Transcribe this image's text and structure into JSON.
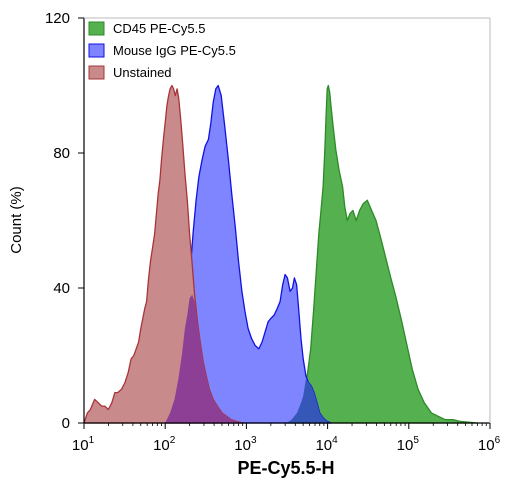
{
  "chart_data": {
    "type": "area",
    "title": "",
    "xlabel": "PE-Cy5.5-H",
    "ylabel": "Count (%)",
    "xscale": "log",
    "xlim": [
      10,
      1000000
    ],
    "ylim": [
      0,
      120
    ],
    "x_ticks": [
      {
        "value": 10,
        "base": "10",
        "exp": "1"
      },
      {
        "value": 100,
        "base": "10",
        "exp": "2"
      },
      {
        "value": 1000,
        "base": "10",
        "exp": "3"
      },
      {
        "value": 10000,
        "base": "10",
        "exp": "4"
      },
      {
        "value": 100000,
        "base": "10",
        "exp": "5"
      },
      {
        "value": 1000000,
        "base": "10",
        "exp": "6"
      }
    ],
    "y_ticks": [
      {
        "value": 0,
        "label": "0"
      },
      {
        "value": 40,
        "label": "40"
      },
      {
        "value": 80,
        "label": "80"
      },
      {
        "value": 120,
        "label": "120"
      }
    ],
    "grid": false,
    "legend_position": "top-left",
    "series": [
      {
        "name": "CD45 PE-Cy5.5",
        "fill": "#55b04f",
        "stroke": "#2e8a28",
        "points": [
          [
            3100,
            0
          ],
          [
            3600,
            1
          ],
          [
            4200,
            3
          ],
          [
            5000,
            8
          ],
          [
            5600,
            14
          ],
          [
            6200,
            22
          ],
          [
            6700,
            33
          ],
          [
            7300,
            46
          ],
          [
            7800,
            56
          ],
          [
            8300,
            63
          ],
          [
            8800,
            70
          ],
          [
            9200,
            80
          ],
          [
            9600,
            92
          ],
          [
            9900,
            99
          ],
          [
            10200,
            100
          ],
          [
            10600,
            98
          ],
          [
            11100,
            93
          ],
          [
            11700,
            88
          ],
          [
            12600,
            81
          ],
          [
            13800,
            75
          ],
          [
            15300,
            70
          ],
          [
            16300,
            64
          ],
          [
            17500,
            60
          ],
          [
            18800,
            62
          ],
          [
            20500,
            63
          ],
          [
            22500,
            60
          ],
          [
            24800,
            63
          ],
          [
            27500,
            65
          ],
          [
            30800,
            66
          ],
          [
            34800,
            63
          ],
          [
            39500,
            60
          ],
          [
            45000,
            55
          ],
          [
            52000,
            49
          ],
          [
            60000,
            43
          ],
          [
            70000,
            37
          ],
          [
            82000,
            30
          ],
          [
            95000,
            23
          ],
          [
            110000,
            16
          ],
          [
            130000,
            10
          ],
          [
            155000,
            6
          ],
          [
            190000,
            3
          ],
          [
            230000,
            2
          ],
          [
            280000,
            1
          ],
          [
            350000,
            1
          ],
          [
            420000,
            0.5
          ],
          [
            520000,
            0.3
          ],
          [
            700000,
            0
          ]
        ]
      },
      {
        "name": "Mouse IgG PE-Cy5.5",
        "fill": "#7f84ff",
        "stroke": "#1212e0",
        "points": [
          [
            100,
            0
          ],
          [
            115,
            3
          ],
          [
            130,
            7
          ],
          [
            145,
            13
          ],
          [
            160,
            20
          ],
          [
            175,
            28
          ],
          [
            190,
            37
          ],
          [
            205,
            46
          ],
          [
            220,
            56
          ],
          [
            240,
            66
          ],
          [
            260,
            73
          ],
          [
            285,
            78
          ],
          [
            310,
            82
          ],
          [
            340,
            84
          ],
          [
            365,
            89
          ],
          [
            390,
            95
          ],
          [
            420,
            99
          ],
          [
            450,
            100
          ],
          [
            490,
            97
          ],
          [
            540,
            88
          ],
          [
            600,
            78
          ],
          [
            660,
            68
          ],
          [
            730,
            58
          ],
          [
            800,
            48
          ],
          [
            880,
            39
          ],
          [
            960,
            33
          ],
          [
            1050,
            28
          ],
          [
            1160,
            25
          ],
          [
            1280,
            23
          ],
          [
            1420,
            22
          ],
          [
            1560,
            24
          ],
          [
            1700,
            27
          ],
          [
            1850,
            30
          ],
          [
            2000,
            31
          ],
          [
            2200,
            32
          ],
          [
            2400,
            34
          ],
          [
            2600,
            36
          ],
          [
            2800,
            41
          ],
          [
            3000,
            44
          ],
          [
            3200,
            43
          ],
          [
            3450,
            39
          ],
          [
            3700,
            40
          ],
          [
            3900,
            43
          ],
          [
            4150,
            41
          ],
          [
            4400,
            34
          ],
          [
            4700,
            25
          ],
          [
            5000,
            19
          ],
          [
            5400,
            14
          ],
          [
            5800,
            12
          ],
          [
            6300,
            11
          ],
          [
            6800,
            9
          ],
          [
            7400,
            6
          ],
          [
            8000,
            3
          ],
          [
            8800,
            1.5
          ],
          [
            9700,
            0.6
          ],
          [
            11000,
            0
          ]
        ]
      },
      {
        "name": "Unstained",
        "fill": "#c98a8c",
        "stroke": "#a83438",
        "points": [
          [
            10,
            0
          ],
          [
            11,
            3
          ],
          [
            12,
            4
          ],
          [
            13.5,
            7
          ],
          [
            15,
            6
          ],
          [
            16.5,
            5
          ],
          [
            18,
            5
          ],
          [
            20,
            4
          ],
          [
            22,
            6
          ],
          [
            24,
            9
          ],
          [
            26,
            9
          ],
          [
            29,
            10
          ],
          [
            32,
            12
          ],
          [
            35,
            15
          ],
          [
            38,
            19
          ],
          [
            41,
            20
          ],
          [
            44,
            22
          ],
          [
            47,
            24
          ],
          [
            50,
            28
          ],
          [
            53,
            31
          ],
          [
            56,
            34
          ],
          [
            59,
            36
          ],
          [
            62,
            42
          ],
          [
            66,
            48
          ],
          [
            70,
            52
          ],
          [
            74,
            56
          ],
          [
            78,
            62
          ],
          [
            82,
            68
          ],
          [
            86,
            72
          ],
          [
            90,
            78
          ],
          [
            95,
            84
          ],
          [
            100,
            89
          ],
          [
            105,
            94
          ],
          [
            110,
            97
          ],
          [
            115,
            99
          ],
          [
            121,
            100
          ],
          [
            127,
            99
          ],
          [
            133,
            97
          ],
          [
            140,
            99
          ],
          [
            147,
            96
          ],
          [
            155,
            90
          ],
          [
            165,
            82
          ],
          [
            175,
            74
          ],
          [
            187,
            66
          ],
          [
            200,
            56
          ],
          [
            215,
            47
          ],
          [
            230,
            38
          ],
          [
            250,
            30
          ],
          [
            270,
            24
          ],
          [
            295,
            18
          ],
          [
            320,
            14
          ],
          [
            350,
            10
          ],
          [
            390,
            7
          ],
          [
            440,
            5
          ],
          [
            500,
            3
          ],
          [
            570,
            2
          ],
          [
            650,
            1
          ],
          [
            750,
            0.5
          ],
          [
            900,
            0
          ]
        ]
      },
      {
        "name": "",
        "fill": "#8d3f95",
        "stroke": "none",
        "points": [
          [
            100,
            0
          ],
          [
            115,
            3
          ],
          [
            130,
            7
          ],
          [
            145,
            13
          ],
          [
            160,
            20
          ],
          [
            175,
            28
          ],
          [
            187,
            32
          ],
          [
            200,
            37
          ],
          [
            215,
            38
          ],
          [
            230,
            36
          ],
          [
            250,
            30
          ],
          [
            270,
            24
          ],
          [
            295,
            18
          ],
          [
            320,
            14
          ],
          [
            350,
            10
          ],
          [
            390,
            7
          ],
          [
            440,
            5
          ],
          [
            500,
            3
          ],
          [
            570,
            2
          ],
          [
            650,
            1
          ],
          [
            750,
            0.5
          ],
          [
            900,
            0
          ]
        ]
      },
      {
        "name": "",
        "fill": "#3557b8",
        "stroke": "none",
        "points": [
          [
            3100,
            0
          ],
          [
            3600,
            1
          ],
          [
            4200,
            3
          ],
          [
            4700,
            6
          ],
          [
            5000,
            8
          ],
          [
            5400,
            13
          ],
          [
            5800,
            12
          ],
          [
            6300,
            11
          ],
          [
            6800,
            9
          ],
          [
            7400,
            6
          ],
          [
            8000,
            3
          ],
          [
            8800,
            1.5
          ],
          [
            9700,
            0.6
          ],
          [
            11000,
            0
          ]
        ]
      }
    ]
  }
}
